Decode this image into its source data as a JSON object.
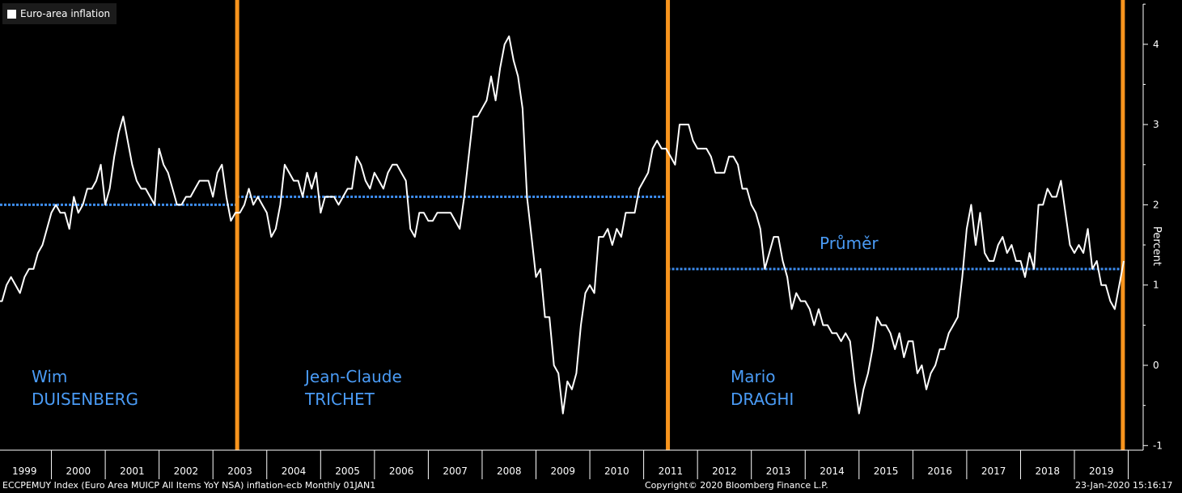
{
  "legend": {
    "label": "Euro-area inflation"
  },
  "footer": {
    "left": "ECCPEMUY Index (Euro Area MUICP All Items YoY NSA) inflation-ecb  Monthly 01JAN1",
    "center": "Copyright© 2020 Bloomberg Finance L.P.",
    "right": "23-Jan-2020 15:16:17"
  },
  "colors": {
    "background": "#000000",
    "line": "#ffffff",
    "divider": "#f7941d",
    "mean": "#3d8df0",
    "label": "#4a9bf5"
  },
  "chart_data": {
    "type": "line",
    "title": "",
    "xlabel": "",
    "ylabel": "Percent",
    "ylim": [
      -1,
      4.5
    ],
    "xlim": [
      1999.0,
      2020.2
    ],
    "grid": false,
    "legend_position": "top-left",
    "x_ticks": [
      "1999",
      "2000",
      "2001",
      "2002",
      "2003",
      "2004",
      "2005",
      "2006",
      "2007",
      "2008",
      "2009",
      "2010",
      "2011",
      "2012",
      "2013",
      "2014",
      "2015",
      "2016",
      "2017",
      "2018",
      "2019"
    ],
    "y_ticks": [
      -1,
      0,
      1,
      2,
      3,
      4
    ],
    "series": [
      {
        "name": "Euro-area inflation",
        "x_start": 1999.0,
        "x_step_months": 1,
        "values": [
          0.8,
          0.8,
          1.0,
          1.1,
          1.0,
          0.9,
          1.1,
          1.2,
          1.2,
          1.4,
          1.5,
          1.7,
          1.9,
          2.0,
          1.9,
          1.9,
          1.7,
          2.1,
          1.9,
          2.0,
          2.2,
          2.2,
          2.3,
          2.5,
          2.0,
          2.2,
          2.6,
          2.9,
          3.1,
          2.8,
          2.5,
          2.3,
          2.2,
          2.2,
          2.1,
          2.0,
          2.7,
          2.5,
          2.4,
          2.2,
          2.0,
          2.0,
          2.1,
          2.1,
          2.2,
          2.3,
          2.3,
          2.3,
          2.1,
          2.4,
          2.5,
          2.1,
          1.8,
          1.9,
          1.9,
          2.0,
          2.2,
          2.0,
          2.1,
          2.0,
          1.9,
          1.6,
          1.7,
          2.0,
          2.5,
          2.4,
          2.3,
          2.3,
          2.1,
          2.4,
          2.2,
          2.4,
          1.9,
          2.1,
          2.1,
          2.1,
          2.0,
          2.1,
          2.2,
          2.2,
          2.6,
          2.5,
          2.3,
          2.2,
          2.4,
          2.3,
          2.2,
          2.4,
          2.5,
          2.5,
          2.4,
          2.3,
          1.7,
          1.6,
          1.9,
          1.9,
          1.8,
          1.8,
          1.9,
          1.9,
          1.9,
          1.9,
          1.8,
          1.7,
          2.1,
          2.6,
          3.1,
          3.1,
          3.2,
          3.3,
          3.6,
          3.3,
          3.7,
          4.0,
          4.1,
          3.8,
          3.6,
          3.2,
          2.1,
          1.6,
          1.1,
          1.2,
          0.6,
          0.6,
          0.0,
          -0.1,
          -0.6,
          -0.2,
          -0.3,
          -0.1,
          0.5,
          0.9,
          1.0,
          0.9,
          1.6,
          1.6,
          1.7,
          1.5,
          1.7,
          1.6,
          1.9,
          1.9,
          1.9,
          2.2,
          2.3,
          2.4,
          2.7,
          2.8,
          2.7,
          2.7,
          2.6,
          2.5,
          3.0,
          3.0,
          3.0,
          2.8,
          2.7,
          2.7,
          2.7,
          2.6,
          2.4,
          2.4,
          2.4,
          2.6,
          2.6,
          2.5,
          2.2,
          2.2,
          2.0,
          1.9,
          1.7,
          1.2,
          1.4,
          1.6,
          1.6,
          1.3,
          1.1,
          0.7,
          0.9,
          0.8,
          0.8,
          0.7,
          0.5,
          0.7,
          0.5,
          0.5,
          0.4,
          0.4,
          0.3,
          0.4,
          0.3,
          -0.2,
          -0.6,
          -0.3,
          -0.1,
          0.2,
          0.6,
          0.5,
          0.5,
          0.4,
          0.2,
          0.4,
          0.1,
          0.3,
          0.3,
          -0.1,
          0.0,
          -0.3,
          -0.1,
          0.0,
          0.2,
          0.2,
          0.4,
          0.5,
          0.6,
          1.1,
          1.7,
          2.0,
          1.5,
          1.9,
          1.4,
          1.3,
          1.3,
          1.5,
          1.6,
          1.4,
          1.5,
          1.3,
          1.3,
          1.1,
          1.4,
          1.2,
          2.0,
          2.0,
          2.2,
          2.1,
          2.1,
          2.3,
          1.9,
          1.5,
          1.4,
          1.5,
          1.4,
          1.7,
          1.2,
          1.3,
          1.0,
          1.0,
          0.8,
          0.7,
          1.0,
          1.3
        ]
      }
    ],
    "mean_lines": [
      {
        "x_start": 1999.0,
        "x_end": 2003.45,
        "value": 2.0
      },
      {
        "x_start": 2003.45,
        "x_end": 2011.45,
        "value": 2.1
      },
      {
        "x_start": 2011.45,
        "x_end": 2019.9,
        "value": 1.2
      }
    ],
    "dividers": [
      2003.45,
      2011.45,
      2019.9
    ],
    "annotations": {
      "mean_label": "Průměr",
      "presidents": [
        {
          "line1": "Wim",
          "line2": "DUISENBERG"
        },
        {
          "line1": "Jean-Claude",
          "line2": "TRICHET"
        },
        {
          "line1": "Mario",
          "line2": "DRAGHI"
        }
      ]
    }
  }
}
